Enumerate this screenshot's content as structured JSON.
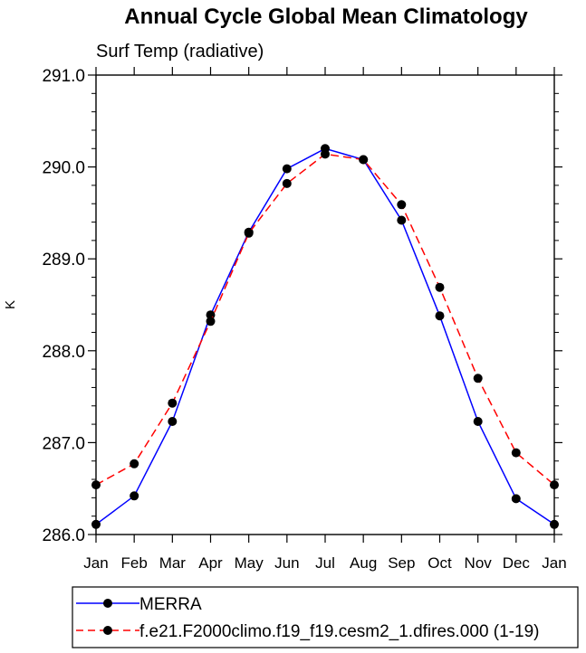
{
  "chart_data": {
    "type": "line",
    "title": "Annual Cycle Global Mean Climatology",
    "subtitle": "Surf Temp (radiative)",
    "ylabel": "K",
    "xlabel": "",
    "categories": [
      "Jan",
      "Feb",
      "Mar",
      "Apr",
      "May",
      "Jun",
      "Jul",
      "Aug",
      "Sep",
      "Oct",
      "Nov",
      "Dec",
      "Jan"
    ],
    "ylim": [
      286.0,
      291.0
    ],
    "yticks": [
      "286.0",
      "287.0",
      "288.0",
      "289.0",
      "290.0",
      "291.0"
    ],
    "ytick_values": [
      286.0,
      287.0,
      288.0,
      289.0,
      290.0,
      291.0
    ],
    "grid": false,
    "legend_position": "bottom",
    "series": [
      {
        "name": "MERRA",
        "color": "#0000ff",
        "style": "solid",
        "marker": "filled-circle",
        "values": [
          286.11,
          286.42,
          287.23,
          288.39,
          289.29,
          289.98,
          290.2,
          290.08,
          289.42,
          288.38,
          287.23,
          286.39,
          286.11
        ]
      },
      {
        "name": "f.e21.F2000climo.f19_f19.cesm2_1.dfires.000 (1-19)",
        "color": "#ff0000",
        "style": "dashed",
        "marker": "filled-circle",
        "values": [
          286.54,
          286.77,
          287.43,
          288.32,
          289.28,
          289.82,
          290.14,
          290.08,
          289.59,
          288.69,
          287.7,
          286.89,
          286.54
        ]
      }
    ]
  }
}
